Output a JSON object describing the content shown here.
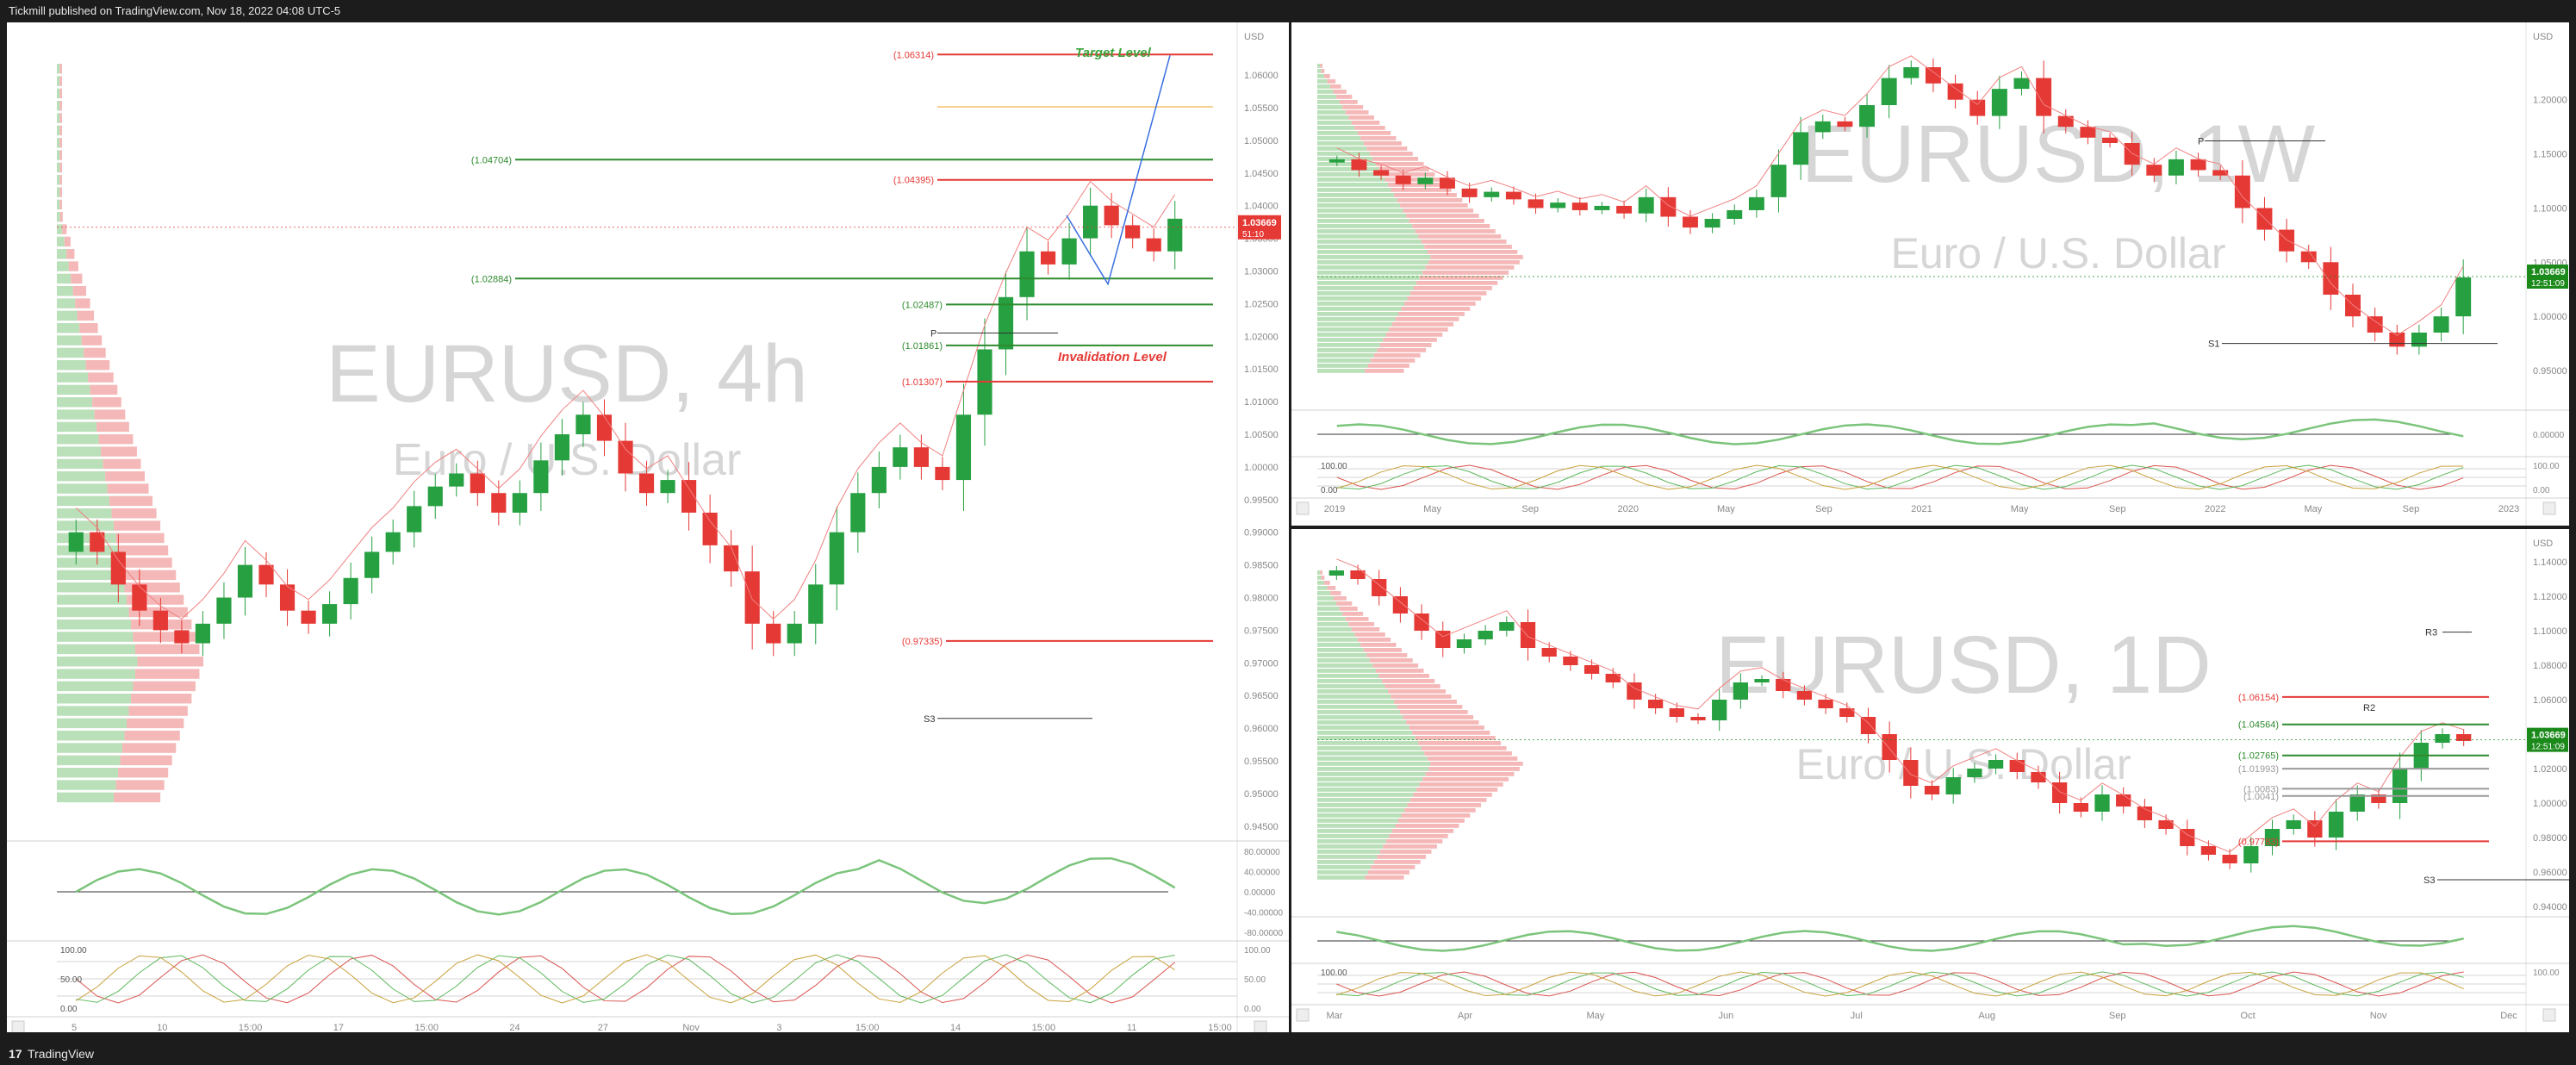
{
  "header": {
    "publisher_line": "Tickmill published on TradingView.com, Nov 18, 2022 04:08 UTC-5"
  },
  "footer": {
    "logo": "17",
    "brand": "TradingView"
  },
  "colors": {
    "bull": "#26a041",
    "bear": "#e53935",
    "level_red": "#e53935",
    "level_green": "#2e8b2e",
    "projection": "#3a6fe0",
    "target_text": "#3aa33a",
    "invalidation_text": "#e53935",
    "watermark": "#d6d6d6",
    "price_tag_4h": "#e53935",
    "price_tag_green": "#1b8a1b",
    "orange_line": "#f0a020"
  },
  "chart_data": [
    {
      "type": "candlestick",
      "symbol": "EURUSD",
      "watermark_title": "EURUSD, 4h",
      "watermark_subtitle": "Euro / U.S. Dollar",
      "currency": "USD",
      "y_axis_ticks": [
        "1.06000",
        "1.05500",
        "1.05000",
        "1.04500",
        "1.04000",
        "1.03500",
        "1.03000",
        "1.02500",
        "1.02000",
        "1.01500",
        "1.01000",
        "1.00500",
        "1.00000",
        "0.99500",
        "0.99000",
        "0.98500",
        "0.98000",
        "0.97500",
        "0.97000",
        "0.96500",
        "0.96000",
        "0.95500",
        "0.95000",
        "0.94500"
      ],
      "ylim": [
        0.943,
        1.067
      ],
      "last_price": "1.03669",
      "countdown": "51:10",
      "x_axis_ticks": [
        "5",
        "10",
        "15:00",
        "17",
        "15:00",
        "24",
        "27",
        "Nov",
        "3",
        "15:00",
        "14",
        "15:00",
        "11",
        "15:00"
      ],
      "levels": [
        {
          "label": "(1.06314)",
          "value": 1.06314,
          "color": "red"
        },
        {
          "label": "(1.04704)",
          "value": 1.04704,
          "color": "green"
        },
        {
          "label": "(1.04395)",
          "value": 1.04395,
          "color": "red"
        },
        {
          "label": "(1.02884)",
          "value": 1.02884,
          "color": "green"
        },
        {
          "label": "(1.02487)",
          "value": 1.02487,
          "color": "green"
        },
        {
          "label": "(1.01861)",
          "value": 1.01861,
          "color": "green"
        },
        {
          "label": "(1.01307)",
          "value": 1.01307,
          "color": "red"
        },
        {
          "label": "(0.97335)",
          "value": 0.97335,
          "color": "red"
        }
      ],
      "pivot_label": "P",
      "pivot_value": 1.0205,
      "s3_label": "S3",
      "s3_value": 0.9615,
      "annotations": {
        "target": "Target Level",
        "invalidation": "Invalidation Level"
      },
      "projection_path": [
        1.0385,
        1.028,
        1.063
      ],
      "oscillator": {
        "ticks": [
          "80.00000",
          "40.00000",
          "0.00000",
          "-40.00000",
          "-80.00000"
        ],
        "ylim": [
          -90,
          90
        ]
      },
      "stochastic": {
        "ticks": [
          "100.00",
          "50.00",
          "0.00"
        ]
      },
      "close_path": [
        0.99,
        0.987,
        0.982,
        0.978,
        0.975,
        0.973,
        0.976,
        0.98,
        0.985,
        0.982,
        0.978,
        0.976,
        0.979,
        0.983,
        0.987,
        0.99,
        0.994,
        0.997,
        0.999,
        0.996,
        0.993,
        0.996,
        1.001,
        1.005,
        1.008,
        1.004,
        0.999,
        0.996,
        0.998,
        0.993,
        0.988,
        0.984,
        0.976,
        0.973,
        0.976,
        0.982,
        0.99,
        0.996,
        1.0,
        1.003,
        1.0,
        0.998,
        1.008,
        1.018,
        1.026,
        1.033,
        1.031,
        1.035,
        1.04,
        1.037,
        1.035,
        1.033,
        1.038
      ]
    },
    {
      "type": "candlestick",
      "symbol": "EURUSD",
      "watermark_title": "EURUSD, 1W",
      "watermark_subtitle": "Euro / U.S. Dollar",
      "currency": "USD",
      "y_axis_ticks": [
        "1.20000",
        "1.15000",
        "1.10000",
        "1.05000",
        "1.00000",
        "0.95000"
      ],
      "ylim": [
        0.915,
        1.265
      ],
      "last_price": "1.03669",
      "countdown": "12:51:09",
      "x_axis_ticks": [
        "2019",
        "May",
        "Sep",
        "2020",
        "May",
        "Sep",
        "2021",
        "May",
        "Sep",
        "2022",
        "May",
        "Sep",
        "2023"
      ],
      "pivot_label": "P",
      "pivot_value": 1.162,
      "s1_label": "S1",
      "s1_value": 0.975,
      "oscillator": {
        "ticks": [
          "0.00000"
        ]
      },
      "stochastic": {
        "ticks": [
          "100.00",
          "0.00"
        ]
      },
      "close_path": [
        1.145,
        1.135,
        1.13,
        1.122,
        1.128,
        1.118,
        1.11,
        1.115,
        1.108,
        1.1,
        1.105,
        1.098,
        1.102,
        1.095,
        1.11,
        1.092,
        1.082,
        1.09,
        1.098,
        1.11,
        1.14,
        1.17,
        1.18,
        1.175,
        1.195,
        1.22,
        1.23,
        1.215,
        1.2,
        1.185,
        1.21,
        1.22,
        1.185,
        1.175,
        1.165,
        1.16,
        1.14,
        1.13,
        1.145,
        1.135,
        1.13,
        1.1,
        1.08,
        1.06,
        1.05,
        1.02,
        1.0,
        0.985,
        0.972,
        0.985,
        1.0,
        1.036
      ]
    },
    {
      "type": "candlestick",
      "symbol": "EURUSD",
      "watermark_title": "EURUSD, 1D",
      "watermark_subtitle": "Euro / U.S. Dollar",
      "currency": "USD",
      "y_axis_ticks": [
        "1.14000",
        "1.12000",
        "1.10000",
        "1.08000",
        "1.06000",
        "1.04000",
        "1.02000",
        "1.00000",
        "0.98000",
        "0.96000",
        "0.94000"
      ],
      "ylim": [
        0.935,
        1.155
      ],
      "last_price": "1.03669",
      "countdown": "12:51:09",
      "x_axis_ticks": [
        "Mar",
        "Apr",
        "May",
        "Jun",
        "Jul",
        "Aug",
        "Sep",
        "Oct",
        "Nov",
        "Dec"
      ],
      "levels": [
        {
          "label": "(1.06154)",
          "value": 1.06154,
          "color": "red"
        },
        {
          "label": "(1.04564)",
          "value": 1.04564,
          "color": "green"
        },
        {
          "label": "(1.02765)",
          "value": 1.02765,
          "color": "green"
        },
        {
          "label": "(1.01993)",
          "value": 1.01993,
          "color": "grey"
        },
        {
          "label": "(1.0083)",
          "value": 1.0083,
          "color": "grey"
        },
        {
          "label": "(1.0041)",
          "value": 1.0041,
          "color": "grey"
        },
        {
          "label": "(0.97783)",
          "value": 0.97783,
          "color": "red"
        }
      ],
      "r3_label": "R3",
      "r3_value": 1.0992,
      "r2_label": "R2",
      "r2_value": 1.0555,
      "s3_label": "S3",
      "s3_value": 0.9555,
      "oscillator": {
        "ticks": []
      },
      "stochastic": {
        "ticks": [
          "100.00"
        ]
      },
      "close_path": [
        1.135,
        1.13,
        1.12,
        1.11,
        1.1,
        1.09,
        1.095,
        1.1,
        1.105,
        1.09,
        1.085,
        1.08,
        1.075,
        1.07,
        1.06,
        1.055,
        1.05,
        1.048,
        1.06,
        1.07,
        1.072,
        1.065,
        1.06,
        1.055,
        1.05,
        1.04,
        1.025,
        1.01,
        1.005,
        1.015,
        1.02,
        1.025,
        1.018,
        1.012,
        1.0,
        0.995,
        1.005,
        0.998,
        0.99,
        0.985,
        0.975,
        0.97,
        0.965,
        0.975,
        0.985,
        0.99,
        0.98,
        0.995,
        1.005,
        1.0,
        1.02,
        1.035,
        1.04,
        1.036
      ]
    }
  ]
}
